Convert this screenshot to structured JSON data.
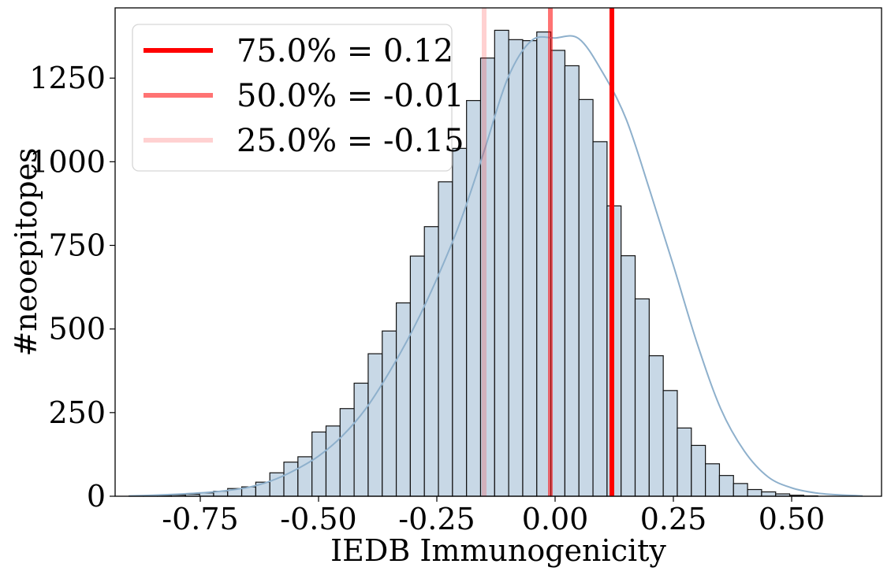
{
  "chart_data": {
    "type": "bar",
    "title": "",
    "xlabel": "IEDB Immunogenicity",
    "ylabel": "#neoepitopes",
    "xlim": [
      -0.93,
      0.69
    ],
    "ylim": [
      0,
      1460
    ],
    "x_ticks": [
      -0.75,
      -0.5,
      -0.25,
      0.0,
      0.25,
      0.5
    ],
    "x_tick_labels": [
      "-0.75",
      "-0.50",
      "-0.25",
      "0.00",
      "0.25",
      "0.50"
    ],
    "y_ticks": [
      0,
      250,
      500,
      750,
      1000,
      1250
    ],
    "y_tick_labels": [
      "0",
      "250",
      "500",
      "750",
      "1000",
      "1250"
    ],
    "bin_start": -0.9,
    "bin_width": 0.0297,
    "counts": [
      1,
      2,
      3,
      4,
      6,
      10,
      15,
      23,
      28,
      42,
      70,
      102,
      118,
      192,
      210,
      262,
      338,
      426,
      494,
      578,
      718,
      806,
      940,
      1040,
      1183,
      1310,
      1393,
      1365,
      1362,
      1388,
      1333,
      1287,
      1186,
      1060,
      868,
      719,
      590,
      420,
      316,
      204,
      152,
      97,
      62,
      38,
      20,
      13,
      7,
      3,
      1,
      0,
      0,
      0
    ],
    "kde": {
      "x": [
        -0.9,
        -0.85,
        -0.8,
        -0.75,
        -0.7,
        -0.65,
        -0.6,
        -0.55,
        -0.5,
        -0.45,
        -0.4,
        -0.35,
        -0.3,
        -0.25,
        -0.2,
        -0.15,
        -0.1,
        -0.05,
        0.0,
        0.05,
        0.1,
        0.15,
        0.2,
        0.25,
        0.3,
        0.35,
        0.4,
        0.45,
        0.5,
        0.55,
        0.6,
        0.65
      ],
      "y": [
        1,
        3,
        6,
        10,
        16,
        26,
        46,
        78,
        120,
        180,
        262,
        372,
        500,
        650,
        822,
        1032,
        1250,
        1362,
        1370,
        1368,
        1268,
        1128,
        915,
        690,
        458,
        262,
        135,
        58,
        25,
        10,
        4,
        1
      ]
    },
    "bar_fill": "#c8d8e6",
    "bar_stroke": "#111111",
    "kde_color": "#8eb0cc",
    "legend": {
      "position": "top-left",
      "entries": [
        {
          "label": "75.0% = 0.12",
          "value": 0.12,
          "color": "#ff0000",
          "opacity": 1.0
        },
        {
          "label": "50.0% = -0.01",
          "value": -0.01,
          "color": "#ff0000",
          "opacity": 0.55
        },
        {
          "label": "25.0% = -0.15",
          "value": -0.15,
          "color": "#ff0000",
          "opacity": 0.18
        }
      ]
    }
  }
}
